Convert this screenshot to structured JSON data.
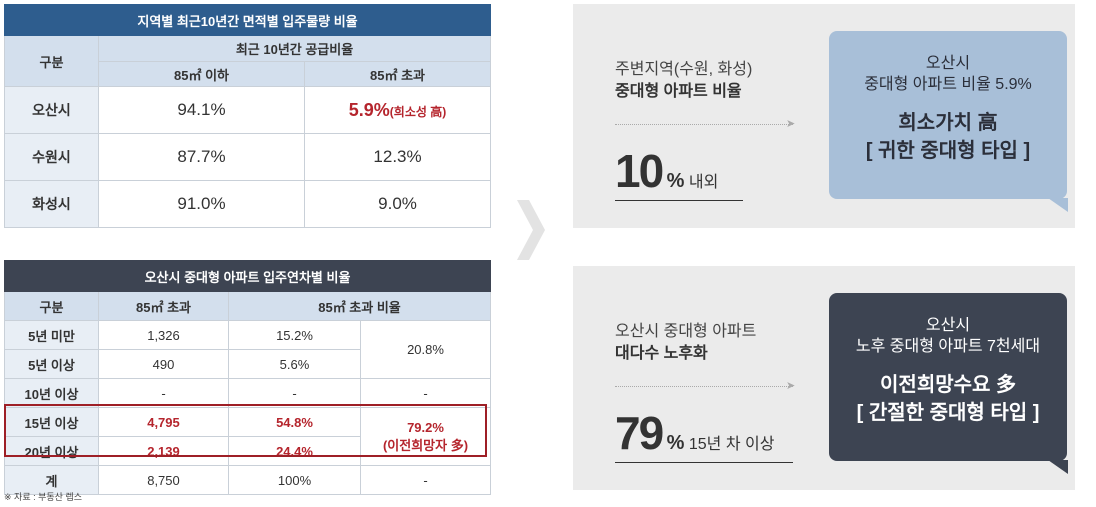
{
  "table1": {
    "title": "지역별 최근10년간 면적별 입주물량 비율",
    "col_category": "구분",
    "col_group": "최근 10년간 공급비율",
    "col_a": "85㎡ 이하",
    "col_b": "85㎡ 초과",
    "rows": [
      {
        "region": "오산시",
        "a": "94.1%",
        "b": "5.9%",
        "b_note": "(희소성 高)"
      },
      {
        "region": "수원시",
        "a": "87.7%",
        "b": "12.3%"
      },
      {
        "region": "화성시",
        "a": "91.0%",
        "b": "9.0%"
      }
    ]
  },
  "table2": {
    "title": "오산시 중대형 아파트 입주연차별 비율",
    "col_category": "구분",
    "col_count": "85㎡ 초과",
    "col_ratio": "85㎡ 초과 비율",
    "rows": [
      {
        "label": "5년 미만",
        "count": "1,326",
        "ratio": "15.2%"
      },
      {
        "label": "5년 이상",
        "count": "490",
        "ratio": "5.6%"
      },
      {
        "label": "10년 이상",
        "count": "-",
        "ratio": "-"
      },
      {
        "label": "15년 이상",
        "count": "4,795",
        "ratio": "54.8%"
      },
      {
        "label": "20년 이상",
        "count": "2,139",
        "ratio": "24.4%"
      },
      {
        "label": "계",
        "count": "8,750",
        "ratio": "100%"
      }
    ],
    "group_ratio_1": "20.8%",
    "group_ratio_2": "-",
    "group_ratio_3_value": "79.2%",
    "group_ratio_3_note": "(이전희망자 多)",
    "group_ratio_total": "-"
  },
  "source": "※ 자료 : 부동산 렙스",
  "panel1": {
    "sub_line1": "주변지역(수원, 화성)",
    "sub_line2": "중대형 아파트 비율",
    "big_number": "10",
    "big_suffix": "%",
    "big_text": "내외",
    "callout_line1": "오산시",
    "callout_line2": "중대형 아파트 비율 5.9%",
    "callout_line3": "희소가치 高",
    "callout_line4": "[ 귀한 중대형 타입 ]"
  },
  "panel2": {
    "sub_line1": "오산시 중대형 아파트",
    "sub_line2": "대다수 노후화",
    "big_number": "79",
    "big_suffix": "%",
    "big_text": "15년 차 이상",
    "callout_line1": "오산시",
    "callout_line2": "노후 중대형 아파트 7천세대",
    "callout_line3": "이전희망수요 多",
    "callout_line4": "[ 간절한 중대형 타입 ]"
  },
  "colors": {
    "table1_title": "#2e5d8e",
    "table2_title": "#3d4452",
    "header_bg": "#d3dfed",
    "highlight_red": "#b5252d",
    "callout_blue": "#a8bfd8",
    "callout_dark": "#3d4452",
    "panel_bg": "#ebebeb"
  }
}
